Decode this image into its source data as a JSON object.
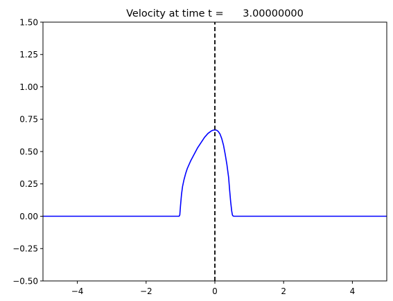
{
  "chart_data": {
    "type": "line",
    "title": "Velocity at time t =      3.00000000",
    "xlabel": "",
    "ylabel": "",
    "xlim": [
      -5,
      5
    ],
    "ylim": [
      -0.5,
      1.5
    ],
    "grid": false,
    "x_ticks": [
      "−4",
      "−2",
      "0",
      "2",
      "4"
    ],
    "x_tick_values": [
      -4,
      -2,
      0,
      2,
      4
    ],
    "y_ticks": [
      "−0.50",
      "−0.25",
      "0.00",
      "0.25",
      "0.50",
      "0.75",
      "1.00",
      "1.25",
      "1.50"
    ],
    "y_tick_values": [
      -0.5,
      -0.25,
      0,
      0.25,
      0.5,
      0.75,
      1.0,
      1.25,
      1.5
    ],
    "series": [
      {
        "color": "#0000ff",
        "style": "solid",
        "x": [
          -5,
          -1.04,
          -1.02,
          -1.0,
          -0.97,
          -0.94,
          -0.9,
          -0.85,
          -0.8,
          -0.7,
          -0.6,
          -0.5,
          -0.4,
          -0.3,
          -0.2,
          -0.1,
          -0.05,
          0.0,
          0.05,
          0.1,
          0.15,
          0.2,
          0.25,
          0.3,
          0.35,
          0.4,
          0.43,
          0.46,
          0.49,
          0.51,
          0.53,
          0.55,
          0.6,
          5
        ],
        "y": [
          0,
          0,
          0.01,
          0.08,
          0.17,
          0.23,
          0.28,
          0.33,
          0.37,
          0.43,
          0.48,
          0.53,
          0.57,
          0.61,
          0.64,
          0.66,
          0.665,
          0.667,
          0.665,
          0.655,
          0.635,
          0.6,
          0.55,
          0.48,
          0.4,
          0.3,
          0.2,
          0.11,
          0.04,
          0.01,
          0.002,
          0,
          0,
          0
        ]
      },
      {
        "color": "#000000",
        "style": "dashed",
        "x": [
          0,
          0
        ],
        "y": [
          -0.5,
          1.5
        ]
      }
    ]
  }
}
